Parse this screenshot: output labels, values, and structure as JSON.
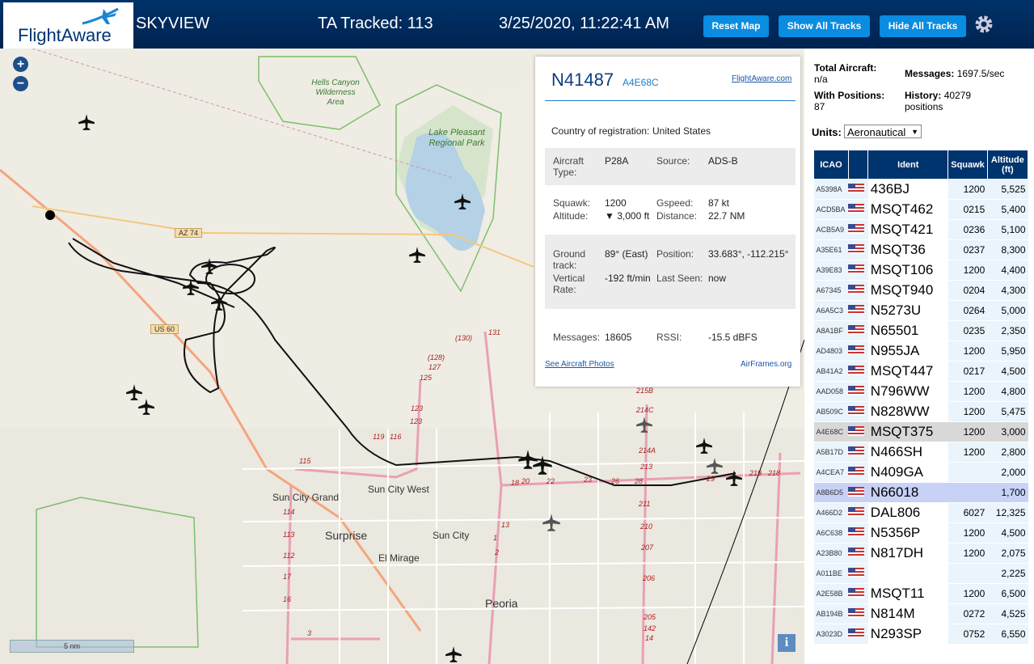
{
  "header": {
    "logo": "FlightAware",
    "app": "SKYVIEW",
    "tracked": "TA Tracked: 113",
    "datetime": "3/25/2020, 11:22:41 AM",
    "buttons": [
      "Reset Map",
      "Show All Tracks",
      "Hide All Tracks"
    ]
  },
  "map": {
    "labels": [
      "Hells Canyon Wilderness Area",
      "Lake Pleasant Regional Park",
      "Sun City Grand",
      "Sun City West",
      "Surprise",
      "Sun City",
      "El Mirage",
      "Peoria"
    ],
    "road_labels": [
      "AZ 74",
      "US 60",
      "131",
      "(130)",
      "(128)",
      "127",
      "125",
      "123",
      "123",
      "119",
      "116",
      "115",
      "114",
      "113",
      "112",
      "17",
      "16",
      "18",
      "20",
      "22",
      "23",
      "26",
      "28",
      "29",
      "219",
      "218",
      "215B",
      "214C",
      "214A",
      "213",
      "211",
      "210",
      "207",
      "206",
      "205",
      "142",
      "14",
      "13",
      "1",
      "2",
      "3"
    ],
    "scale": "5 nm"
  },
  "popup": {
    "callsign": "N41487",
    "hex": "A4E68C",
    "link": "FlightAware.com",
    "country_label": "Country of registration:",
    "country": "United States",
    "sections": [
      [
        {
          "label": "Aircraft Type:",
          "value": "P28A"
        },
        {
          "label": "Source:",
          "value": "ADS-B"
        }
      ],
      [
        {
          "label": "Squawk:",
          "value": "1200"
        },
        {
          "label": "Gspeed:",
          "value": "87 kt"
        },
        {
          "label": "Altitude:",
          "value": "▼ 3,000 ft"
        },
        {
          "label": "Distance:",
          "value": "22.7 NM"
        }
      ],
      [
        {
          "label": "Ground track:",
          "value": "89° (East)"
        },
        {
          "label": "Position:",
          "value": "33.683°, -112.215°"
        },
        {
          "label": "Vertical Rate:",
          "value": "-192 ft/min"
        },
        {
          "label": "Last Seen:",
          "value": "now"
        }
      ],
      [
        {
          "label": "Messages:",
          "value": "18605"
        },
        {
          "label": "RSSI:",
          "value": "-15.5 dBFS"
        }
      ]
    ],
    "photos": "See Aircraft Photos",
    "airframes": "AirFrames.org"
  },
  "stats": {
    "total_label": "Total Aircraft:",
    "total": "n/a",
    "messages_label": "Messages:",
    "messages": "1697.5/sec",
    "positions_label": "With Positions:",
    "positions": "87",
    "history_label": "History:",
    "history": "40279 positions",
    "units_label": "Units:",
    "units": "Aeronautical"
  },
  "table": {
    "columns": [
      "ICAO",
      "Ident",
      "Squawk",
      "Altitude (ft)"
    ],
    "rows": [
      [
        "A5398A",
        "436BJ",
        "1200",
        "5,525"
      ],
      [
        "ACD5BA",
        "MSQT462",
        "0215",
        "5,400"
      ],
      [
        "ACB5A9",
        "MSQT421",
        "0236",
        "5,100"
      ],
      [
        "A35E61",
        "MSQT36",
        "0237",
        "8,300"
      ],
      [
        "A39E83",
        "MSQT106",
        "1200",
        "4,400"
      ],
      [
        "A67345",
        "MSQT940",
        "0204",
        "4,300"
      ],
      [
        "A6A5C3",
        "N5273U",
        "0264",
        "5,000"
      ],
      [
        "A8A1BF",
        "N65501",
        "0235",
        "2,350"
      ],
      [
        "AD4803",
        "N955JA",
        "1200",
        "5,950"
      ],
      [
        "AB41A2",
        "MSQT447",
        "0217",
        "4,500"
      ],
      [
        "AAD058",
        "N796WW",
        "1200",
        "4,800"
      ],
      [
        "AB509C",
        "N828WW",
        "1200",
        "5,475"
      ],
      [
        "A4E68C",
        "MSQT375",
        "1200",
        "3,000"
      ],
      [
        "A5B17D",
        "N466SH",
        "1200",
        "2,800"
      ],
      [
        "A4CEA7",
        "N409GA",
        null,
        "2,000"
      ],
      [
        "A8B6D5",
        "N66018",
        null,
        "1,700"
      ],
      [
        "A466D2",
        "DAL806",
        "6027",
        "12,325"
      ],
      [
        "A6C638",
        "N5356P",
        "1200",
        "4,500"
      ],
      [
        "A23B80",
        "N817DH",
        "1200",
        "2,075"
      ],
      [
        "A011BE",
        null,
        null,
        "2,225"
      ],
      [
        "A2E58B",
        "MSQT11",
        "1200",
        "6,500"
      ],
      [
        "AB194B",
        "N814M",
        "0272",
        "4,525"
      ],
      [
        "A3023D",
        "N293SP",
        "0752",
        "6,550"
      ]
    ]
  }
}
